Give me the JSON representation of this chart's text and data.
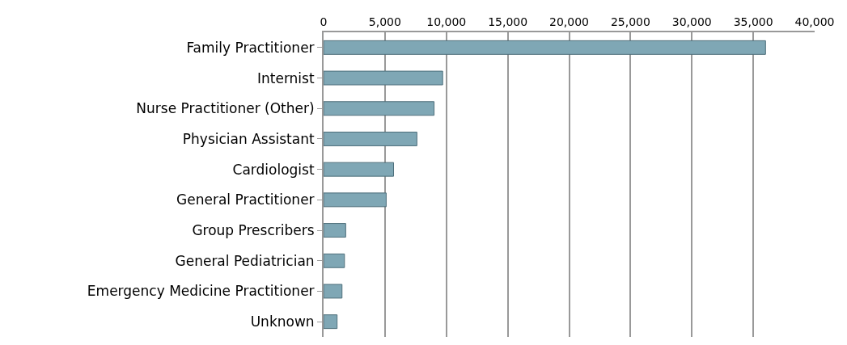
{
  "chart_data": {
    "type": "bar",
    "orientation": "horizontal",
    "categories": [
      "Family Practitioner",
      "Internist",
      "Nurse Practitioner (Other)",
      "Physician Assistant",
      "Cardiologist",
      "General Practitioner",
      "Group Prescribers",
      "General Pediatrician",
      "Emergency Medicine Practitioner",
      "Unknown"
    ],
    "values": [
      36000,
      9700,
      9000,
      7600,
      5700,
      5100,
      1800,
      1700,
      1500,
      1100
    ],
    "color": "#7fa7b5",
    "xlim": [
      0,
      40000
    ],
    "xticks": [
      {
        "value": 0,
        "label": "0"
      },
      {
        "value": 5000,
        "label": "5,000"
      },
      {
        "value": 10000,
        "label": "10,000"
      },
      {
        "value": 15000,
        "label": "15,000"
      },
      {
        "value": 20000,
        "label": "20,000"
      },
      {
        "value": 25000,
        "label": "25,000"
      },
      {
        "value": 30000,
        "label": "30,000"
      },
      {
        "value": 35000,
        "label": "35,000"
      },
      {
        "value": 40000,
        "label": "40,000"
      }
    ],
    "grid": "x"
  }
}
